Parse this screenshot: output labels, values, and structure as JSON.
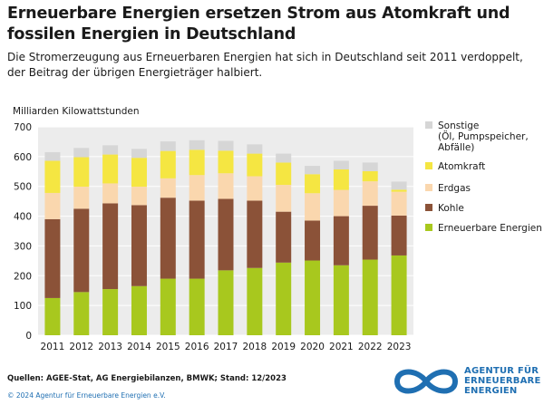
{
  "chart_data": {
    "type": "bar",
    "stacked": true,
    "title": "Erneuerbare Energien ersetzen Strom aus Atomkraft und fossilen Energien in Deutschland",
    "subtitle": "Die Stromerzeugung aus Erneuerbaren Energien hat sich in Deutschland seit 2011 verdoppelt, der Beitrag der übrigen Energieträger halbiert.",
    "ylabel": "Milliarden Kilowattstunden",
    "xlabel": "",
    "ylim": [
      0,
      700
    ],
    "yticks": [
      "0",
      "100",
      "200",
      "300",
      "400",
      "500",
      "600",
      "700"
    ],
    "grid": true,
    "legend_position": "right",
    "categories": [
      "2011",
      "2012",
      "2013",
      "2014",
      "2015",
      "2016",
      "2017",
      "2018",
      "2019",
      "2020",
      "2021",
      "2022",
      "2023"
    ],
    "series": [
      {
        "name": "Erneuerbare Energien",
        "color": "#a8c81e",
        "values": [
          125,
          145,
          155,
          165,
          190,
          190,
          218,
          226,
          244,
          251,
          235,
          254,
          268
        ]
      },
      {
        "name": "Kohle",
        "color": "#8b5238",
        "values": [
          265,
          280,
          288,
          272,
          272,
          262,
          240,
          226,
          171,
          134,
          165,
          181,
          134
        ]
      },
      {
        "name": "Erdgas",
        "color": "#fad7ae",
        "values": [
          88,
          74,
          67,
          62,
          65,
          86,
          86,
          82,
          90,
          92,
          88,
          82,
          80
        ]
      },
      {
        "name": "Atomkraft",
        "color": "#f5e642",
        "values": [
          108,
          99,
          97,
          97,
          92,
          85,
          76,
          76,
          75,
          64,
          69,
          34,
          7
        ]
      },
      {
        "name": "Sonstige\n(Öl, Pumpspeicher, Abfälle)",
        "color": "#d6d6d6",
        "values": [
          29,
          31,
          31,
          30,
          32,
          32,
          33,
          31,
          30,
          28,
          29,
          29,
          27
        ]
      }
    ]
  },
  "footer": {
    "source": "Quellen: AGEE-Stat, AG Energiebilanzen, BMWK; Stand: 12/2023",
    "copyright": "© 2024 Agentur für Erneuerbare Energien e.V.",
    "logo_line1": "AGENTUR FÜR",
    "logo_line2": "ERNEUERBARE",
    "logo_line3": "ENERGIEN"
  },
  "colors": {
    "plot_background": "#ececec",
    "brand_blue": "#1f6fb2"
  }
}
